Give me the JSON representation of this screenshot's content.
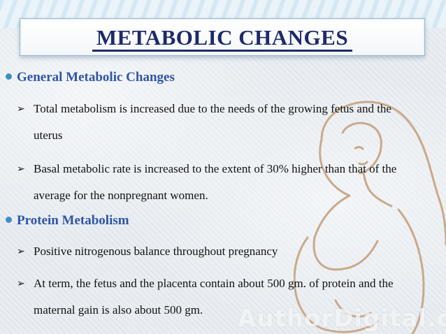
{
  "slide": {
    "title": "METABOLIC CHANGES",
    "sections": [
      {
        "heading": "General Metabolic Changes",
        "bullets": [
          "Total metabolism is increased due to the needs of the growing fetus and the uterus",
          "Basal metabolic rate is increased to the extent of 30% higher than that of the average for the nonpregnant  women."
        ]
      },
      {
        "heading": "Protein Metabolism",
        "bullets": [
          " Positive nitrogenous balance throughout pregnancy",
          "At term, the fetus and the placenta contain about 500 gm. of protein and the maternal gain is also about 500 gm."
        ]
      }
    ],
    "watermark": "AuthorDigital.c"
  },
  "colors": {
    "title": "#1f2a6b",
    "heading": "#2f55a6",
    "bullet_dot": "#3d8fc6",
    "body_text": "#111111",
    "illustration_line": "#c9a98a"
  },
  "icons": {
    "section_marker": "circle-bullet-icon",
    "bullet_marker": "arrow-bullet-icon"
  }
}
